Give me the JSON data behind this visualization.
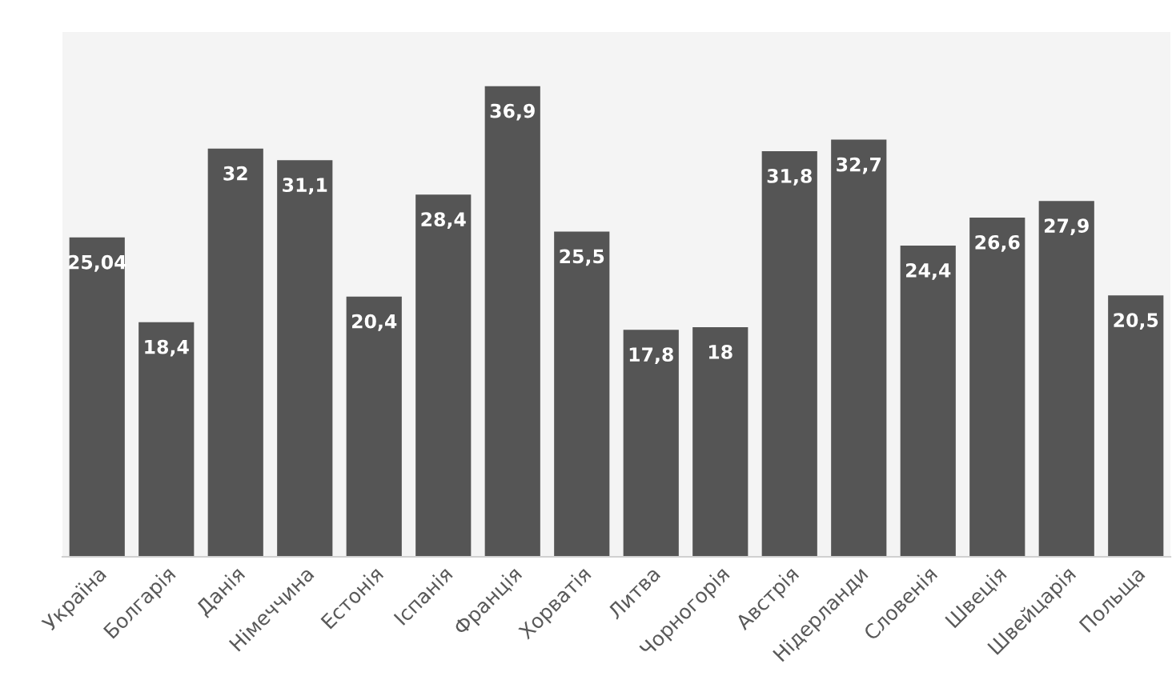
{
  "chart_data": {
    "type": "bar",
    "categories": [
      "Україна",
      "Болгарія",
      "Данія",
      "Німеччина",
      "Естонія",
      "Іспанія",
      "Франція",
      "Хорватія",
      "Литва",
      "Чорногорія",
      "Австрія",
      "Нідерланди",
      "Словенія",
      "Швеція",
      "Швейцарія",
      "Польща"
    ],
    "values": [
      25.04,
      18.4,
      32,
      31.1,
      20.4,
      28.4,
      36.9,
      25.5,
      17.8,
      18,
      31.8,
      32.7,
      24.4,
      26.6,
      27.9,
      20.5
    ],
    "color": "#555555",
    "value_labels": [
      "25,04",
      "18,4",
      "32",
      "31,1",
      "20,4",
      "28,4",
      "36,9",
      "25,5",
      "17,8",
      "18",
      "31,8",
      "32,7",
      "24,4",
      "26,6",
      "27,9",
      "20,5"
    ],
    "grid": false,
    "legend": false
  }
}
